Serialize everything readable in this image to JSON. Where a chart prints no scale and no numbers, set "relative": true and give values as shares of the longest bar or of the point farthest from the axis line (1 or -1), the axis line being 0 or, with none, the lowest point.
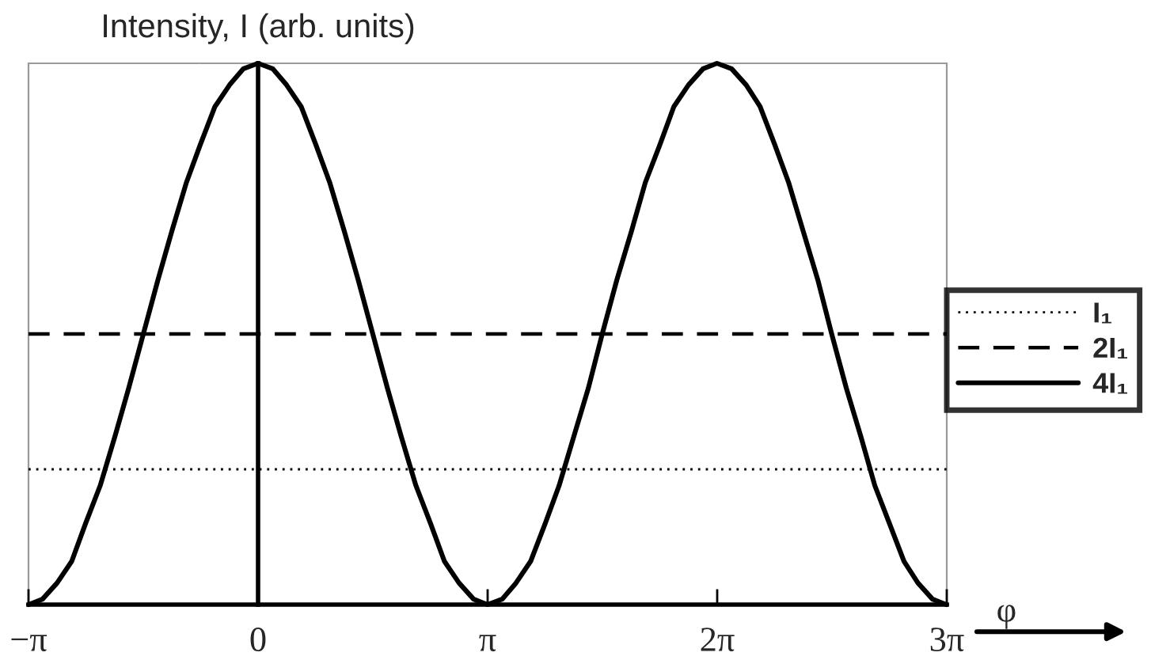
{
  "chart_data": {
    "type": "line",
    "ylabel": "Intensity, I (arb. units)",
    "xlabel": "φ",
    "relative": true,
    "xlim": [
      -3.1416,
      9.4248
    ],
    "xticks": [
      {
        "value": -3.1416,
        "label": "−π"
      },
      0,
      {
        "value": 3.1416,
        "label": "π"
      },
      {
        "value": 6.2832,
        "label": "2π"
      },
      {
        "value": 9.4248,
        "label": "3π"
      }
    ],
    "tick_labels": "x",
    "legend": "right",
    "series": [
      {
        "name": "I₁",
        "color": "#000000",
        "line_style": "dotted",
        "x": [
          -3.1416,
          9.4248
        ],
        "values": [
          0.25,
          0.25
        ]
      },
      {
        "name": "2I₁",
        "color": "#000000",
        "line_style": "dashed",
        "x": [
          -3.1416,
          9.4248
        ],
        "values": [
          0.5,
          0.5
        ]
      },
      {
        "name": "4I₁",
        "color": "#000000",
        "line_style": "solid",
        "x": [
          -3.14,
          -2.95,
          -2.75,
          -2.55,
          -2.36,
          -2.16,
          -1.96,
          -1.77,
          -1.57,
          -1.37,
          -1.18,
          -0.98,
          -0.79,
          -0.59,
          -0.39,
          -0.2,
          0,
          0.2,
          0.39,
          0.59,
          0.79,
          0.98,
          1.18,
          1.37,
          1.57,
          1.77,
          1.96,
          2.16,
          2.36,
          2.55,
          2.75,
          2.95,
          3.14,
          3.34,
          3.53,
          3.73,
          3.93,
          4.12,
          4.32,
          4.52,
          4.71,
          4.91,
          5.11,
          5.3,
          5.5,
          5.69,
          5.89,
          6.09,
          6.28,
          6.48,
          6.68,
          6.87,
          7.07,
          7.26,
          7.46,
          7.66,
          7.85,
          8.05,
          8.25,
          8.44,
          8.64,
          8.84,
          9.03,
          9.23,
          9.42
        ],
        "values": [
          0,
          0.01,
          0.04,
          0.08,
          0.15,
          0.22,
          0.31,
          0.4,
          0.5,
          0.6,
          0.69,
          0.78,
          0.85,
          0.92,
          0.96,
          0.99,
          1,
          0.99,
          0.96,
          0.92,
          0.85,
          0.78,
          0.69,
          0.6,
          0.5,
          0.4,
          0.31,
          0.22,
          0.15,
          0.08,
          0.04,
          0.01,
          0,
          0.01,
          0.04,
          0.08,
          0.15,
          0.22,
          0.31,
          0.4,
          0.5,
          0.6,
          0.69,
          0.78,
          0.85,
          0.92,
          0.96,
          0.99,
          1,
          0.99,
          0.96,
          0.92,
          0.85,
          0.78,
          0.69,
          0.6,
          0.5,
          0.4,
          0.31,
          0.22,
          0.15,
          0.08,
          0.04,
          0.01,
          0
        ]
      }
    ]
  }
}
